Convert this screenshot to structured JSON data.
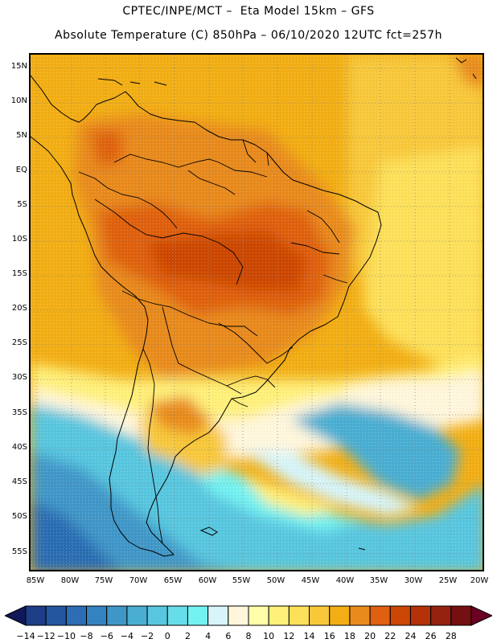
{
  "title": {
    "line1": "CPTEC/INPE/MCT –  Eta Model 15km – GFS",
    "line2": "Absolute Temperature (C) 850hPa – 06/10/2020 12UTC fct=257h"
  },
  "map": {
    "lat_ticks": [
      "15N",
      "10N",
      "5N",
      "EQ",
      "5S",
      "10S",
      "15S",
      "20S",
      "25S",
      "30S",
      "35S",
      "40S",
      "45S",
      "50S",
      "55S"
    ],
    "lon_ticks": [
      "85W",
      "80W",
      "75W",
      "70W",
      "65W",
      "60W",
      "55W",
      "50W",
      "45W",
      "40W",
      "35W",
      "30W",
      "25W",
      "20W"
    ],
    "region": "South America",
    "grid": "dotted"
  },
  "legend": {
    "labels": [
      "-14",
      "-12",
      "-10",
      "-8",
      "-6",
      "-4",
      "-2",
      "0",
      "2",
      "4",
      "6",
      "8",
      "10",
      "12",
      "14",
      "16",
      "18",
      "20",
      "22",
      "24",
      "26",
      "28"
    ],
    "colors": [
      "#1e3d87",
      "#2456a0",
      "#2c6db3",
      "#3582c0",
      "#3f97c8",
      "#4aaed2",
      "#58c6df",
      "#66dde9",
      "#74f2f2",
      "#d6f4fa",
      "#fff6dc",
      "#ffffaa",
      "#fff07a",
      "#fde05a",
      "#f8c83a",
      "#f2ae14",
      "#e88a1c",
      "#df6010",
      "#cc4606",
      "#b53208",
      "#952210",
      "#740f12"
    ],
    "left_arrow_color": "#101858",
    "right_arrow_color": "#6a0022"
  },
  "chart_data": {
    "type": "heatmap",
    "variable": "Absolute Temperature (C) 850hPa",
    "color_levels": [
      -14,
      -12,
      -10,
      -8,
      -6,
      -4,
      -2,
      0,
      2,
      4,
      6,
      8,
      10,
      12,
      14,
      16,
      18,
      20,
      22,
      24,
      26,
      28
    ],
    "lon_range": [
      -86,
      -19
    ],
    "lat_range": [
      -58,
      17
    ]
  }
}
